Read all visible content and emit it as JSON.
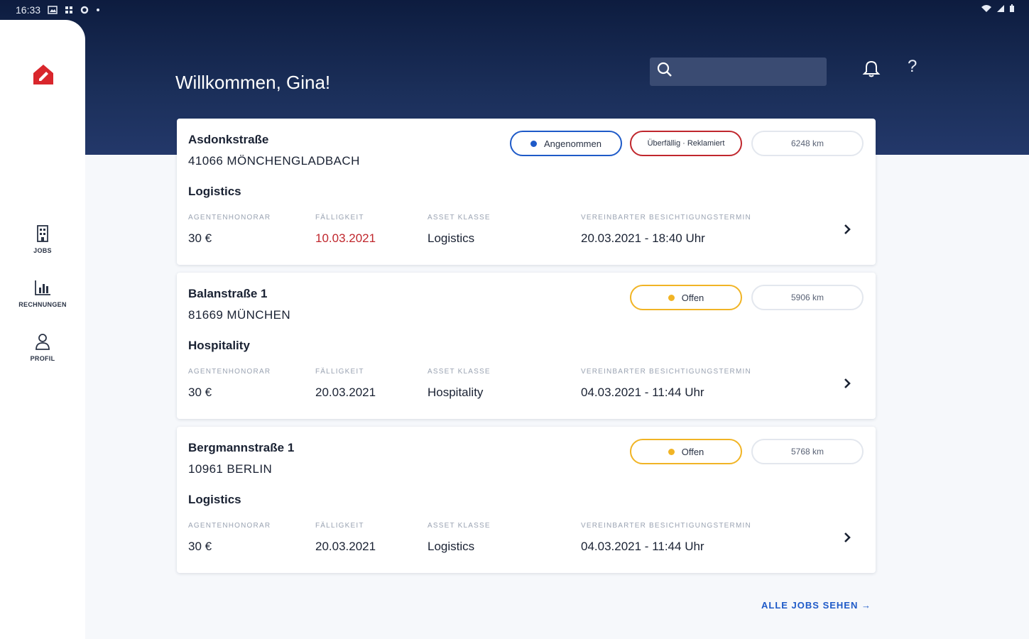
{
  "status_bar": {
    "time": "16:33"
  },
  "sidebar": {
    "items": [
      {
        "label": "JOBS"
      },
      {
        "label": "RECHNUNGEN"
      },
      {
        "label": "PROFIL"
      }
    ]
  },
  "header": {
    "welcome": "Willkommen, Gina!",
    "search_placeholder": "",
    "help": "?"
  },
  "colors": {
    "accent": "#1e5ac8",
    "brand_red": "#d9262c",
    "status_yellow": "#f1b425",
    "header_bg": "#0d1c3f"
  },
  "jobs": [
    {
      "street": "Asdonkstraße",
      "city": "41066 MÖNCHENGLADBACH",
      "class_title": "Logistics",
      "status_label": "Angenommen",
      "extra_status": "Überfällig · Reklamiert",
      "distance": "6248 km",
      "fields": {
        "agent_fee_label": "AGENTENHONORAR",
        "agent_fee": "30 €",
        "due_label": "FÄLLIGKEIT",
        "due": "10.03.2021",
        "asset_label": "ASSET KLASSE",
        "asset": "Logistics",
        "appointment_label": "VEREINBARTER BESICHTIGUNGSTERMIN",
        "appointment": "20.03.2021 - 18:40 Uhr"
      }
    },
    {
      "street": "Balanstraße 1",
      "city": "81669 MÜNCHEN",
      "class_title": "Hospitality",
      "status_label": "Offen",
      "distance": "5906 km",
      "fields": {
        "agent_fee_label": "AGENTENHONORAR",
        "agent_fee": "30 €",
        "due_label": "FÄLLIGKEIT",
        "due": "20.03.2021",
        "asset_label": "ASSET KLASSE",
        "asset": "Hospitality",
        "appointment_label": "VEREINBARTER BESICHTIGUNGSTERMIN",
        "appointment": "04.03.2021 - 11:44 Uhr"
      }
    },
    {
      "street": "Bergmannstraße 1",
      "city": "10961 BERLIN",
      "class_title": "Logistics",
      "status_label": "Offen",
      "distance": "5768 km",
      "fields": {
        "agent_fee_label": "AGENTENHONORAR",
        "agent_fee": "30 €",
        "due_label": "FÄLLIGKEIT",
        "due": "20.03.2021",
        "asset_label": "ASSET KLASSE",
        "asset": "Logistics",
        "appointment_label": "VEREINBARTER BESICHTIGUNGSTERMIN",
        "appointment": "04.03.2021 - 11:44 Uhr"
      }
    }
  ],
  "footer": {
    "all_jobs": "ALLE JOBS SEHEN →"
  }
}
